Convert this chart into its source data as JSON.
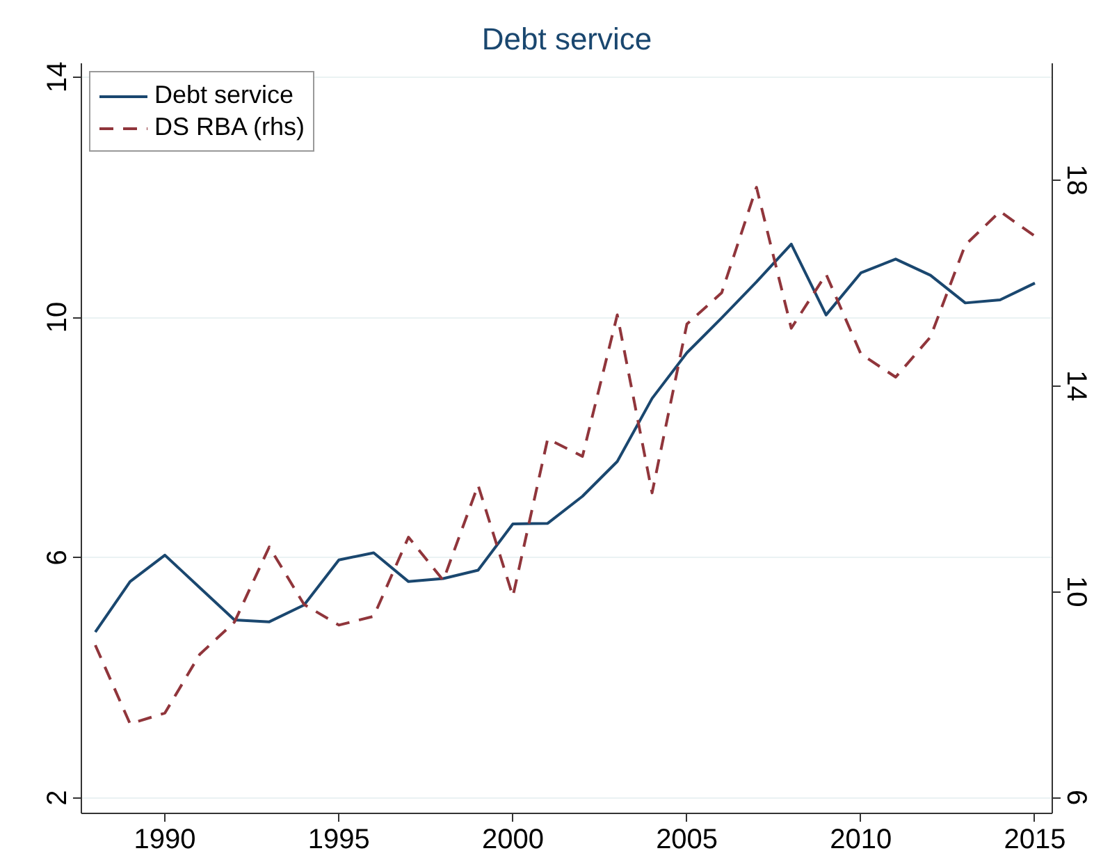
{
  "chart_data": {
    "type": "line",
    "title": "Debt service",
    "x": [
      1988,
      1989,
      1990,
      1991,
      1992,
      1993,
      1994,
      1995,
      1996,
      1997,
      1998,
      1999,
      2000,
      2001,
      2002,
      2003,
      2004,
      2005,
      2006,
      2007,
      2008,
      2009,
      2010,
      2011,
      2012,
      2013,
      2014,
      2015
    ],
    "series": [
      {
        "name": "Debt service",
        "color": "#1a476f",
        "line_style": "solid",
        "values": [
          4.76,
          5.6,
          6.04,
          5.5,
          4.96,
          4.93,
          5.21,
          5.96,
          6.08,
          5.6,
          5.65,
          5.79,
          6.56,
          6.57,
          7.02,
          7.6,
          8.65,
          9.41,
          9.99,
          10.59,
          11.22,
          10.04,
          10.74,
          10.97,
          10.7,
          10.24,
          10.29,
          10.57
        ]
      },
      {
        "name": "DS RBA (rhs)",
        "color": "#90353b",
        "line_style": "dashed",
        "axis": "y2",
        "values": [
          8.96,
          7.43,
          7.64,
          8.78,
          9.41,
          10.87,
          9.75,
          9.35,
          9.52,
          11.06,
          10.22,
          12.07,
          9.91,
          12.97,
          12.63,
          15.38,
          11.92,
          15.2,
          15.81,
          17.86,
          15.12,
          16.17,
          14.62,
          14.17,
          14.95,
          16.74,
          17.39,
          16.91
        ]
      }
    ],
    "xlim": [
      1987.6,
      2015.5
    ],
    "xticks": [
      1990,
      1995,
      2000,
      2005,
      2010,
      2015
    ],
    "ylim": [
      1.74,
      14.23
    ],
    "yticks": [
      2,
      6,
      10,
      14
    ],
    "y2lim": [
      5.69,
      20.27
    ],
    "y2ticks": [
      6,
      10,
      14,
      18
    ],
    "grid": "y",
    "legend": "top left"
  }
}
